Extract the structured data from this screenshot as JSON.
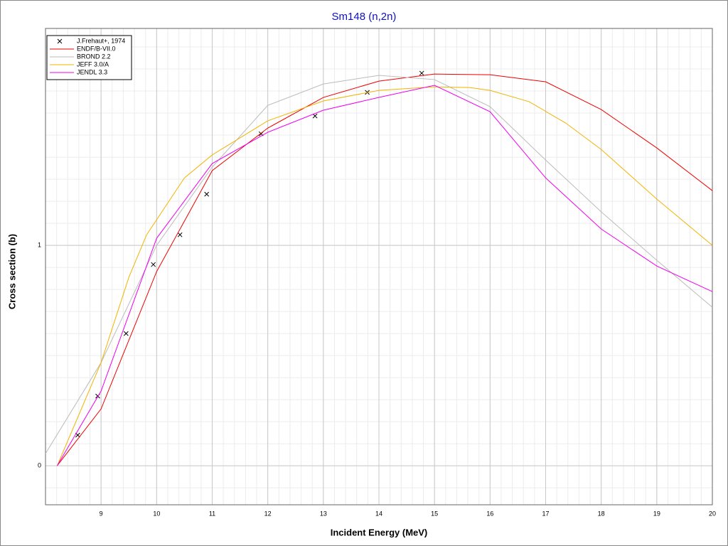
{
  "chart_data": {
    "type": "line",
    "title": "Sm148 (n,2n)",
    "x_label": "Incident Energy (MeV)",
    "y_label": "Cross section (b)",
    "xlim": [
      8,
      20
    ],
    "ylim": [
      -0.177,
      1.984
    ],
    "xticks": [
      9,
      10,
      11,
      12,
      13,
      14,
      15,
      16,
      17,
      18,
      19,
      20
    ],
    "yticks": [
      0,
      1
    ],
    "grid": true,
    "legend": "top-left",
    "series": [
      {
        "name": "J.Frehaut+, 1974",
        "color": "#000000",
        "marker": "x",
        "line": false,
        "x": [
          8.58,
          8.94,
          9.45,
          9.94,
          10.42,
          10.9,
          11.88,
          12.85,
          13.79,
          14.77
        ],
        "values": [
          0.139,
          0.316,
          0.6,
          0.913,
          1.048,
          1.232,
          1.506,
          1.587,
          1.694,
          1.781
        ]
      },
      {
        "name": "ENDF/B-VII.0",
        "color": "#ee0000",
        "line": true,
        "x": [
          8.21,
          9,
          10,
          11,
          12,
          13,
          14,
          15,
          16,
          17,
          18,
          19,
          20
        ],
        "values": [
          0,
          0.258,
          0.881,
          1.339,
          1.532,
          1.671,
          1.745,
          1.777,
          1.774,
          1.742,
          1.616,
          1.442,
          1.248
        ]
      },
      {
        "name": "BROND 2.2",
        "color": "#bbbbbb",
        "line": true,
        "x": [
          8,
          9,
          10,
          11,
          12,
          13,
          14,
          15,
          16,
          17,
          18,
          19,
          20
        ],
        "values": [
          0.055,
          0.468,
          1.0,
          1.355,
          1.635,
          1.732,
          1.771,
          1.752,
          1.629,
          1.387,
          1.152,
          0.932,
          0.719
        ]
      },
      {
        "name": "JEFF 3.0/A",
        "color": "#f0b400",
        "line": true,
        "x": [
          8.21,
          9,
          9.5,
          9.82,
          10.5,
          11,
          12,
          13,
          14,
          15,
          15.63,
          16,
          16.7,
          17.36,
          18,
          19,
          20
        ],
        "values": [
          0,
          0.468,
          0.855,
          1.048,
          1.306,
          1.41,
          1.565,
          1.655,
          1.703,
          1.719,
          1.716,
          1.703,
          1.652,
          1.555,
          1.435,
          1.21,
          1.0
        ]
      },
      {
        "name": "JENDL 3.3",
        "color": "#ee00ee",
        "line": true,
        "x": [
          8.21,
          9,
          10,
          11,
          12,
          13,
          14,
          15,
          16,
          17,
          18,
          19,
          20
        ],
        "values": [
          0,
          0.339,
          1.032,
          1.371,
          1.513,
          1.613,
          1.671,
          1.726,
          1.606,
          1.306,
          1.074,
          0.906,
          0.79
        ]
      }
    ]
  }
}
